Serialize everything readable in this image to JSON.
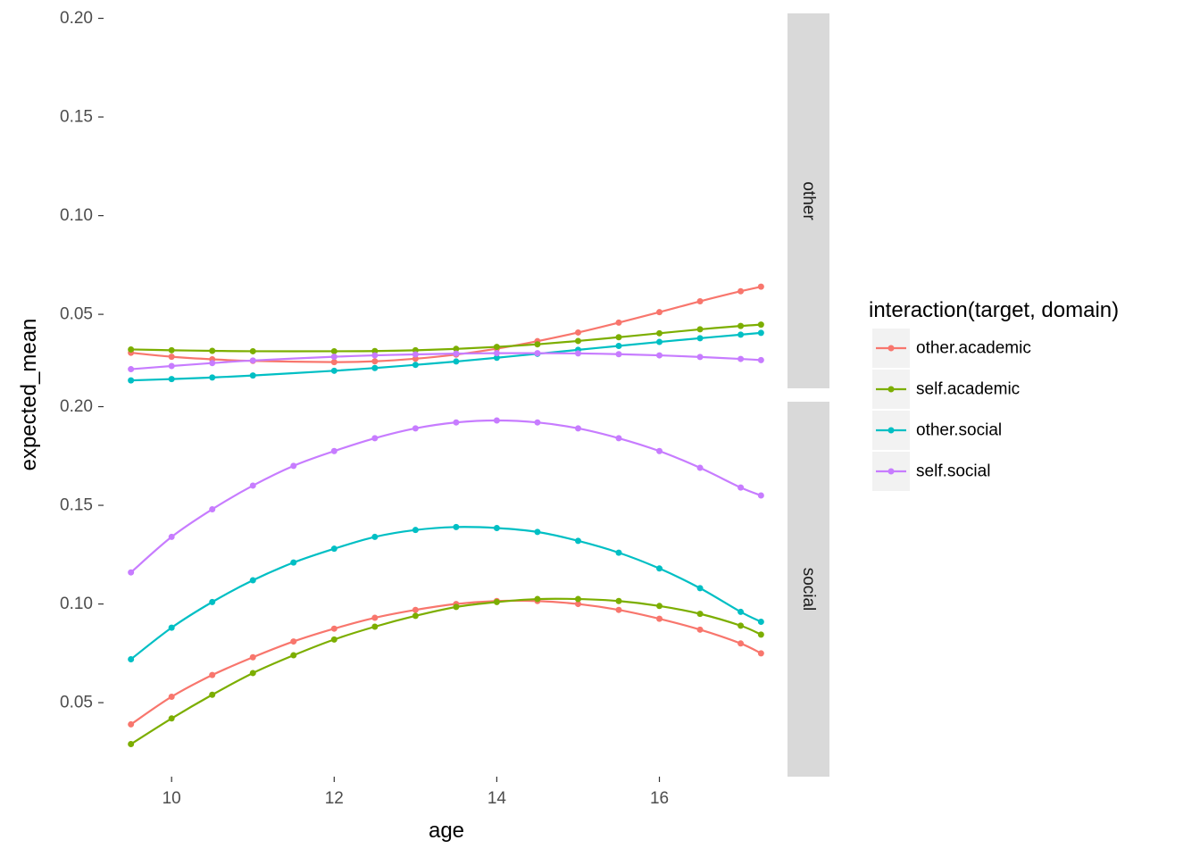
{
  "chart_data": {
    "type": "line",
    "xlabel": "age",
    "ylabel": "expected_mean",
    "xlim": [
      9.35,
      17.4
    ],
    "x_ticks": [
      10,
      12,
      14,
      16
    ],
    "x_tick_labels": [
      "10",
      "12",
      "14",
      "16"
    ],
    "y_ticks": [
      0.05,
      0.1,
      0.15,
      0.2
    ],
    "y_tick_labels": [
      "0.05",
      "0.10",
      "0.15",
      "0.20"
    ],
    "grid": false,
    "legend": {
      "title": "interaction(target, domain)",
      "position": "right",
      "entries": [
        "other.academic",
        "self.academic",
        "other.social",
        "self.social"
      ]
    },
    "facets": [
      {
        "label": "other",
        "ylim": [
          0.0125,
          0.2025
        ],
        "series": [
          {
            "name": "other.academic",
            "color": "#F8766D",
            "x": [
              9.5,
              10.0,
              10.5,
              11.0,
              12.0,
              12.5,
              13.0,
              13.5,
              14.0,
              14.5,
              15.0,
              15.5,
              16.0,
              16.5,
              17.0,
              17.25
            ],
            "y": [
              0.0305,
              0.0285,
              0.0272,
              0.0264,
              0.0258,
              0.0262,
              0.0275,
              0.0296,
              0.0326,
              0.0364,
              0.0408,
              0.0458,
              0.0511,
              0.0566,
              0.0617,
              0.064
            ]
          },
          {
            "name": "self.academic",
            "color": "#7CAE00",
            "x": [
              9.5,
              10.0,
              10.5,
              11.0,
              12.0,
              12.5,
              13.0,
              13.5,
              14.0,
              14.5,
              15.0,
              15.5,
              16.0,
              16.5,
              17.0,
              17.25
            ],
            "y": [
              0.0322,
              0.0318,
              0.0315,
              0.0313,
              0.0313,
              0.0314,
              0.0318,
              0.0325,
              0.0335,
              0.0348,
              0.0365,
              0.0384,
              0.0404,
              0.0424,
              0.0441,
              0.0448
            ]
          },
          {
            "name": "other.social",
            "color": "#00BFC4",
            "x": [
              9.5,
              10.0,
              10.5,
              11.0,
              12.0,
              12.5,
              13.0,
              13.5,
              14.0,
              14.5,
              15.0,
              15.5,
              16.0,
              16.5,
              17.0,
              17.25
            ],
            "y": [
              0.0165,
              0.0172,
              0.018,
              0.019,
              0.0214,
              0.0228,
              0.0244,
              0.0261,
              0.028,
              0.03,
              0.032,
              0.034,
              0.036,
              0.0379,
              0.0397,
              0.0406
            ]
          },
          {
            "name": "self.social",
            "color": "#C77CFF",
            "x": [
              9.5,
              10.0,
              10.5,
              11.0,
              12.0,
              12.5,
              13.0,
              13.5,
              14.0,
              14.5,
              15.0,
              15.5,
              16.0,
              16.5,
              17.0,
              17.25
            ],
            "y": [
              0.0222,
              0.0238,
              0.0253,
              0.0266,
              0.0285,
              0.0292,
              0.0297,
              0.0301,
              0.0303,
              0.0303,
              0.0302,
              0.0298,
              0.0292,
              0.0284,
              0.0274,
              0.0268
            ]
          }
        ]
      },
      {
        "label": "social",
        "ylim": [
          0.0125,
          0.2025
        ],
        "series": [
          {
            "name": "other.academic",
            "color": "#F8766D",
            "x": [
              9.5,
              10.0,
              10.5,
              11.0,
              11.5,
              12.0,
              12.5,
              13.0,
              13.5,
              14.0,
              14.5,
              15.0,
              15.5,
              16.0,
              16.5,
              17.0,
              17.25
            ],
            "y": [
              0.039,
              0.053,
              0.064,
              0.073,
              0.081,
              0.0875,
              0.093,
              0.097,
              0.1,
              0.1015,
              0.1015,
              0.1,
              0.097,
              0.0925,
              0.087,
              0.08,
              0.075
            ]
          },
          {
            "name": "self.academic",
            "color": "#7CAE00",
            "x": [
              9.5,
              10.0,
              10.5,
              11.0,
              11.5,
              12.0,
              12.5,
              13.0,
              13.5,
              14.0,
              14.5,
              15.0,
              15.5,
              16.0,
              16.5,
              17.0,
              17.25
            ],
            "y": [
              0.029,
              0.042,
              0.054,
              0.065,
              0.074,
              0.082,
              0.0885,
              0.094,
              0.0985,
              0.101,
              0.1025,
              0.1025,
              0.1015,
              0.099,
              0.095,
              0.089,
              0.0845
            ]
          },
          {
            "name": "other.social",
            "color": "#00BFC4",
            "x": [
              9.5,
              10.0,
              10.5,
              11.0,
              11.5,
              12.0,
              12.5,
              13.0,
              13.5,
              14.0,
              14.5,
              15.0,
              15.5,
              16.0,
              16.5,
              17.0,
              17.25
            ],
            "y": [
              0.072,
              0.088,
              0.101,
              0.112,
              0.121,
              0.128,
              0.134,
              0.1375,
              0.139,
              0.1385,
              0.1365,
              0.132,
              0.126,
              0.118,
              0.108,
              0.096,
              0.091
            ]
          },
          {
            "name": "self.social",
            "color": "#C77CFF",
            "x": [
              9.5,
              10.0,
              10.5,
              11.0,
              11.5,
              12.0,
              12.5,
              13.0,
              13.5,
              14.0,
              14.5,
              15.0,
              15.5,
              16.0,
              16.5,
              17.0,
              17.25
            ],
            "y": [
              0.116,
              0.134,
              0.148,
              0.16,
              0.17,
              0.1775,
              0.184,
              0.189,
              0.192,
              0.193,
              0.192,
              0.189,
              0.184,
              0.1775,
              0.169,
              0.159,
              0.155
            ]
          }
        ]
      }
    ]
  }
}
